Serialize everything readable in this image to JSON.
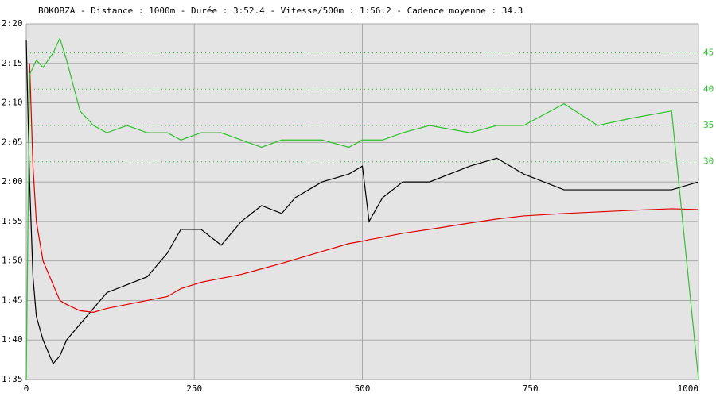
{
  "chart_data": {
    "type": "line",
    "title": "BOKOBZA - Distance : 1000m - Durée : 3:52.4 - Vitesse/500m : 1:56.2 - Cadence moyenne : 34.3",
    "x": [
      0,
      5,
      10,
      15,
      25,
      40,
      50,
      60,
      80,
      100,
      120,
      150,
      180,
      210,
      230,
      260,
      290,
      320,
      350,
      380,
      400,
      440,
      480,
      500,
      510,
      530,
      560,
      600,
      660,
      700,
      740,
      800,
      850,
      900,
      960,
      1000
    ],
    "xlim": [
      0,
      1000
    ],
    "xticks": [
      0,
      250,
      500,
      750,
      1000
    ],
    "ylim": [
      95,
      140
    ],
    "yticks": [
      {
        "value": 95,
        "label": "1:35"
      },
      {
        "value": 100,
        "label": "1:40"
      },
      {
        "value": 105,
        "label": "1:45"
      },
      {
        "value": 110,
        "label": "1:50"
      },
      {
        "value": 115,
        "label": "1:55"
      },
      {
        "value": 120,
        "label": "2:00"
      },
      {
        "value": 125,
        "label": "2:05"
      },
      {
        "value": 130,
        "label": "2:10"
      },
      {
        "value": 135,
        "label": "2:15"
      },
      {
        "value": 140,
        "label": "2:20"
      }
    ],
    "y2lim": [
      0,
      49
    ],
    "y2ticks": [
      30,
      35,
      40,
      45
    ],
    "grid": true,
    "series": [
      {
        "color": "#000000",
        "values": [
          138,
          120,
          108,
          103,
          100,
          97,
          98,
          100,
          102,
          104,
          106,
          107,
          108,
          111,
          114,
          114,
          112,
          115,
          117,
          116,
          118,
          120,
          121,
          122,
          115,
          118,
          120,
          120,
          122,
          123,
          121,
          119,
          119,
          119,
          119,
          120
        ]
      },
      {
        "color": "#e00000",
        "values": [
          null,
          135,
          122,
          115,
          110,
          107,
          105,
          104.5,
          103.7,
          103.5,
          104,
          104.5,
          105,
          105.5,
          106.5,
          107.3,
          107.8,
          108.3,
          109,
          109.7,
          110.2,
          111.2,
          112.2,
          112.5,
          112.7,
          113,
          113.5,
          114,
          114.8,
          115.3,
          115.7,
          116,
          116.2,
          116.4,
          116.6,
          116.5
        ]
      },
      {
        "color": "#30c030",
        "axis": "y2",
        "values": [
          0,
          42,
          43,
          44,
          43,
          45,
          47,
          44,
          37,
          35,
          34,
          35,
          34,
          34,
          33,
          34,
          34,
          33,
          32,
          33,
          33,
          33,
          32,
          33,
          33,
          33,
          34,
          35,
          34,
          35,
          35,
          38,
          35,
          36,
          37,
          0
        ]
      }
    ]
  }
}
